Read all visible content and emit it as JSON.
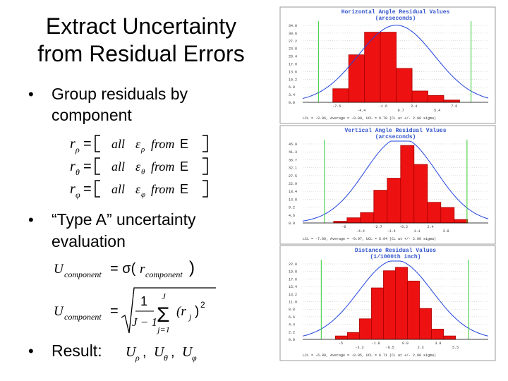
{
  "slide": {
    "title": [
      "Extract Uncertainty",
      "from Residual Errors"
    ],
    "bullets": [
      [
        "Group residuals by",
        "component"
      ],
      [
        "“Type A” uncertainty",
        "evaluation"
      ],
      [
        "Result:"
      ]
    ],
    "matrix": [
      {
        "r": "r",
        "sub": "ρ",
        "eq": "=",
        "all": "all",
        "eps": "ε",
        "from": "from",
        "set": "E"
      },
      {
        "r": "r",
        "sub": "θ",
        "eq": "=",
        "all": "all",
        "eps": "ε",
        "from": "from",
        "set": "E"
      },
      {
        "r": "r",
        "sub": "φ",
        "eq": "=",
        "all": "all",
        "eps": "ε",
        "from": "from",
        "set": "E"
      }
    ],
    "formula1": {
      "u": "U",
      "usub": "component",
      "eq": "= σ(",
      "r": "r",
      "rsub": "component",
      "close": ")"
    },
    "formula2": {
      "u": "U",
      "usub": "component",
      "eq": "=",
      "num": "1",
      "den": "J − 1",
      "sum": "Σ",
      "top": "J",
      "bottom": "j=1",
      "r": "(r",
      "rsub": "j",
      "close": ")",
      "pow": "2"
    },
    "result": [
      {
        "u": "U",
        "sub": "ρ",
        "sep": ","
      },
      {
        "u": "U",
        "sub": "θ",
        "sep": ","
      },
      {
        "u": "U",
        "sub": "φ",
        "sep": ""
      }
    ]
  },
  "chart_data": [
    {
      "type": "histogram",
      "title": "Horizontal Angle Residual Values",
      "subtitle": "(arcseconds)",
      "bins": [
        -8.1,
        -6.05,
        -4.0,
        -1.95,
        0.1,
        2.15,
        4.2,
        6.25,
        8.3
      ],
      "counts": [
        6,
        21,
        31,
        31,
        15,
        5,
        3,
        1
      ],
      "color": "#ee1111",
      "limits": [
        -9.96,
        9.78
      ],
      "xlim": [
        -12,
        12
      ],
      "ylim": [
        0,
        34.0
      ],
      "yticks": [
        {
          "value": 0,
          "label": "0.0"
        },
        3.4,
        6.8,
        10.2,
        13.6,
        {
          "value": 17,
          "label": "17.0"
        },
        20.4,
        23.8,
        27.2,
        30.6,
        {
          "value": 34,
          "label": "34.0"
        }
      ],
      "xticks": [
        -7.6,
        -4.4,
        -1.6,
        0.7,
        2.4,
        5.4,
        7.6
      ],
      "footer": "LCL = -9.96, Average = -0.09, UCL = 9.78  (CL at +/- 2.00 sigma)"
    },
    {
      "type": "histogram",
      "title": "Vertical Angle Residual Values",
      "subtitle": "(arcseconds)",
      "bins": [
        -7.0,
        -5.7,
        -4.4,
        -3.1,
        -1.8,
        -0.5,
        0.8,
        2.1,
        3.4,
        4.7,
        6.0
      ],
      "counts": [
        1,
        3,
        6,
        19,
        26,
        45,
        34,
        12,
        9,
        2
      ],
      "color": "#ee1111",
      "limits": [
        -7.89,
        5.94
      ],
      "xlim": [
        -10,
        8
      ],
      "ylim": [
        0,
        45.9
      ],
      "yticks": [
        {
          "value": 0,
          "label": "0.0"
        },
        4.6,
        9.2,
        13.8,
        18.4,
        22.9,
        27.5,
        32.1,
        36.7,
        41.3,
        45.9
      ],
      "xticks": [
        -6.0,
        -4.4,
        -2.7,
        -1.4,
        -0.2,
        1.1,
        2.4,
        3.9
      ],
      "footer": "LCL = -7.89, Average = -0.97, UCL = 5.94  (CL at +/- 2.00 sigma)"
    },
    {
      "type": "histogram",
      "title": "Distance Residual Values",
      "subtitle": "(1/1000th inch)",
      "bins": [
        -5.5,
        -4.4,
        -3.3,
        -2.2,
        -1.1,
        0,
        1.1,
        2.2,
        3.3,
        4.4,
        5.5
      ],
      "counts": [
        1,
        2,
        6,
        15,
        20,
        21,
        17,
        9,
        3,
        1
      ],
      "color": "#ee1111",
      "limits": [
        -6.8,
        6.71
      ],
      "xlim": [
        -8.5,
        8.5
      ],
      "ylim": [
        0,
        22.0
      ],
      "yticks": [
        {
          "value": 0,
          "label": "0.0"
        },
        2.2,
        4.4,
        6.6,
        8.8,
        {
          "value": 11,
          "label": "11.0"
        },
        13.2,
        15.4,
        17.6,
        19.8,
        {
          "value": 22,
          "label": "22.0"
        }
      ],
      "xticks": [
        -5.0,
        -3.3,
        -1.8,
        -0.5,
        0.9,
        2.3,
        3.9,
        5.5
      ],
      "footer": "LCL = -6.80, Average = -0.05, UCL = 6.71  (CL at +/- 2.00 sigma)"
    }
  ]
}
